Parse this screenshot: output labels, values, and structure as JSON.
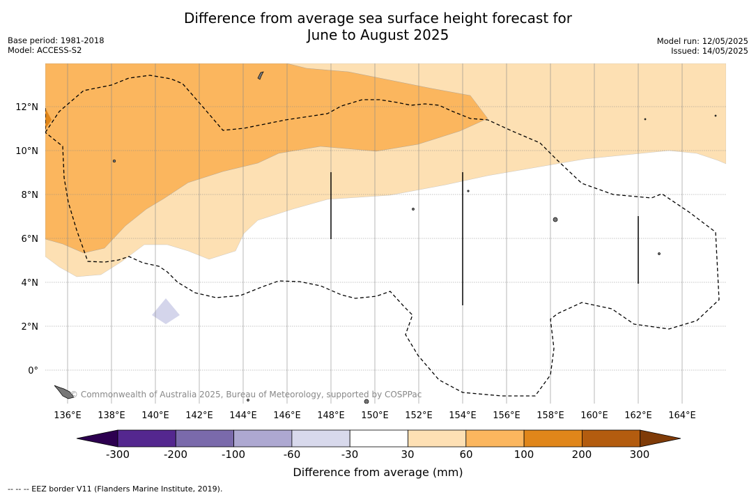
{
  "title": {
    "line1": "Difference from average sea surface height forecast for",
    "line2": "June to August 2025"
  },
  "meta": {
    "base_period": "Base period: 1981-2018",
    "model": "Model: ACCESS-S2",
    "model_run": "Model run: 12/05/2025",
    "issued": "Issued: 14/05/2025"
  },
  "map": {
    "lon_labels": [
      "136°E",
      "138°E",
      "140°E",
      "142°E",
      "144°E",
      "146°E",
      "148°E",
      "150°E",
      "152°E",
      "154°E",
      "156°E",
      "158°E",
      "160°E",
      "162°E",
      "164°E"
    ],
    "lat_labels": [
      "12°N",
      "10°N",
      "8°N",
      "6°N",
      "4°N",
      "2°N",
      "0°"
    ],
    "credit": "© Commonwealth of Australia 2025, Bureau of Meteorology, supported by COSPPac",
    "colors": {
      "range_30_60": "#fde0b3",
      "range_60_100": "#fbb65e",
      "range_100_200": "#e0861a",
      "range_neg60_neg30": "#d4d5eb"
    }
  },
  "colorbar": {
    "ticks": [
      "-300",
      "-200",
      "-100",
      "-60",
      "-30",
      "30",
      "60",
      "100",
      "200",
      "300"
    ],
    "colors": [
      "#54278f",
      "#7a6aab",
      "#ada8d1",
      "#d8d9ec",
      "#ffffff",
      "#fee0b4",
      "#fbb65e",
      "#e0861a",
      "#b35c0f"
    ],
    "under_color": "#2d0050",
    "over_color": "#7f3b08",
    "title": "Difference from average (mm)"
  },
  "footer": "--  --  -- EEZ border V11 (Flanders Marine Institute, 2019)."
}
